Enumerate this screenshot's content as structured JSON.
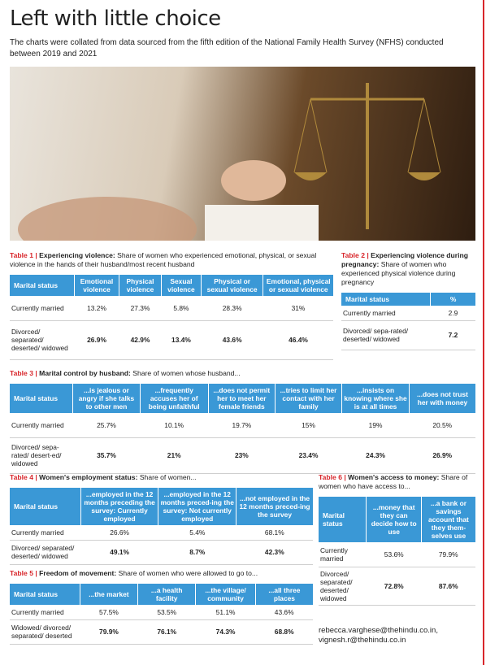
{
  "header": {
    "title": "Left with little choice",
    "subtitle": "The charts were collated from data sourced from the fifth edition of the National Family Health Survey (NFHS) conducted between 2019 and 2021"
  },
  "tables": [
    {
      "id": "Table 1 |",
      "heading": "Experiencing violence:",
      "description": "Share of women who experienced emotional, physical, or sexual violence in the hands of their husband/most recent husband",
      "headers": [
        "Marital status",
        "Emotional violence",
        "Physical violence",
        "Sexual violence",
        "Physical or sexual violence",
        "Emotional, physical or sexual violence"
      ],
      "rows": [
        [
          "Currently married",
          "13.2%",
          "27.3%",
          "5.8%",
          "28.3%",
          "31%"
        ],
        [
          "Divorced/ separated/ deserted/ widowed",
          "26.9%",
          "42.9%",
          "13.4%",
          "43.6%",
          "46.4%"
        ]
      ]
    },
    {
      "id": "Table 2 |",
      "heading": "Experiencing violence during pregnancy:",
      "description": "Share of women who experienced physical violence during pregnancy",
      "headers": [
        "Marital status",
        "%"
      ],
      "rows": [
        [
          "Currently married",
          "2.9"
        ],
        [
          "Divorced/ sepa-rated/ deserted/ widowed",
          "7.2"
        ]
      ]
    },
    {
      "id": "Table 3 |",
      "heading": "Marital control by husband:",
      "description": "Share of women whose husband...",
      "headers": [
        "Marital status",
        "...is jealous or angry if she talks to other men",
        "...frequently accuses her of being unfaithful",
        "...does not permit her to meet her female friends",
        "...tries to limit her contact with her family",
        "...insists on knowing where she is at all times",
        "...does not trust her with money"
      ],
      "rows": [
        [
          "Currently married",
          "25.7%",
          "10.1%",
          "19.7%",
          "15%",
          "19%",
          "20.5%"
        ],
        [
          "Divorced/ sepa-rated/ desert-ed/ widowed",
          "35.7%",
          "21%",
          "23%",
          "23.4%",
          "24.3%",
          "26.9%"
        ]
      ]
    },
    {
      "id": "Table 4 |",
      "heading": "Women's employment status:",
      "description": "Share of women...",
      "headers": [
        "Marital status",
        "...employed in the 12 months preceding the survey: Currently employed",
        "...employed in the 12 months preced-ing the survey: Not currently employed",
        "...not employed in the 12 months preced-ing the survey"
      ],
      "rows": [
        [
          "Currently married",
          "26.6%",
          "5.4%",
          "68.1%"
        ],
        [
          "Divorced/ separated/ deserted/ widowed",
          "49.1%",
          "8.7%",
          "42.3%"
        ]
      ]
    },
    {
      "id": "Table 5 |",
      "heading": "Freedom of movement:",
      "description": "Share of women who were allowed to go to...",
      "headers": [
        "Marital status",
        "...the market",
        "...a health facility",
        "...the village/ community",
        "...all three places"
      ],
      "rows": [
        [
          "Currently married",
          "57.5%",
          "53.5%",
          "51.1%",
          "43.6%"
        ],
        [
          "Widowed/ divorced/ separated/ deserted",
          "79.9%",
          "76.1%",
          "74.3%",
          "68.8%"
        ]
      ]
    },
    {
      "id": "Table 6 |",
      "heading": "Women's access to money:",
      "description": "Share of women who have access to...",
      "headers": [
        "Marital status",
        "...money that they can decide how to use",
        "...a bank or savings account that they them-selves use"
      ],
      "rows": [
        [
          "Currently married",
          "53.6%",
          "79.9%"
        ],
        [
          "Divorced/ separated/ deserted/ widowed",
          "72.8%",
          "87.6%"
        ]
      ]
    }
  ],
  "credits": [
    "rebecca.varghese@thehindu.co.in,",
    "vignesh.r@thehindu.co.in"
  ]
}
